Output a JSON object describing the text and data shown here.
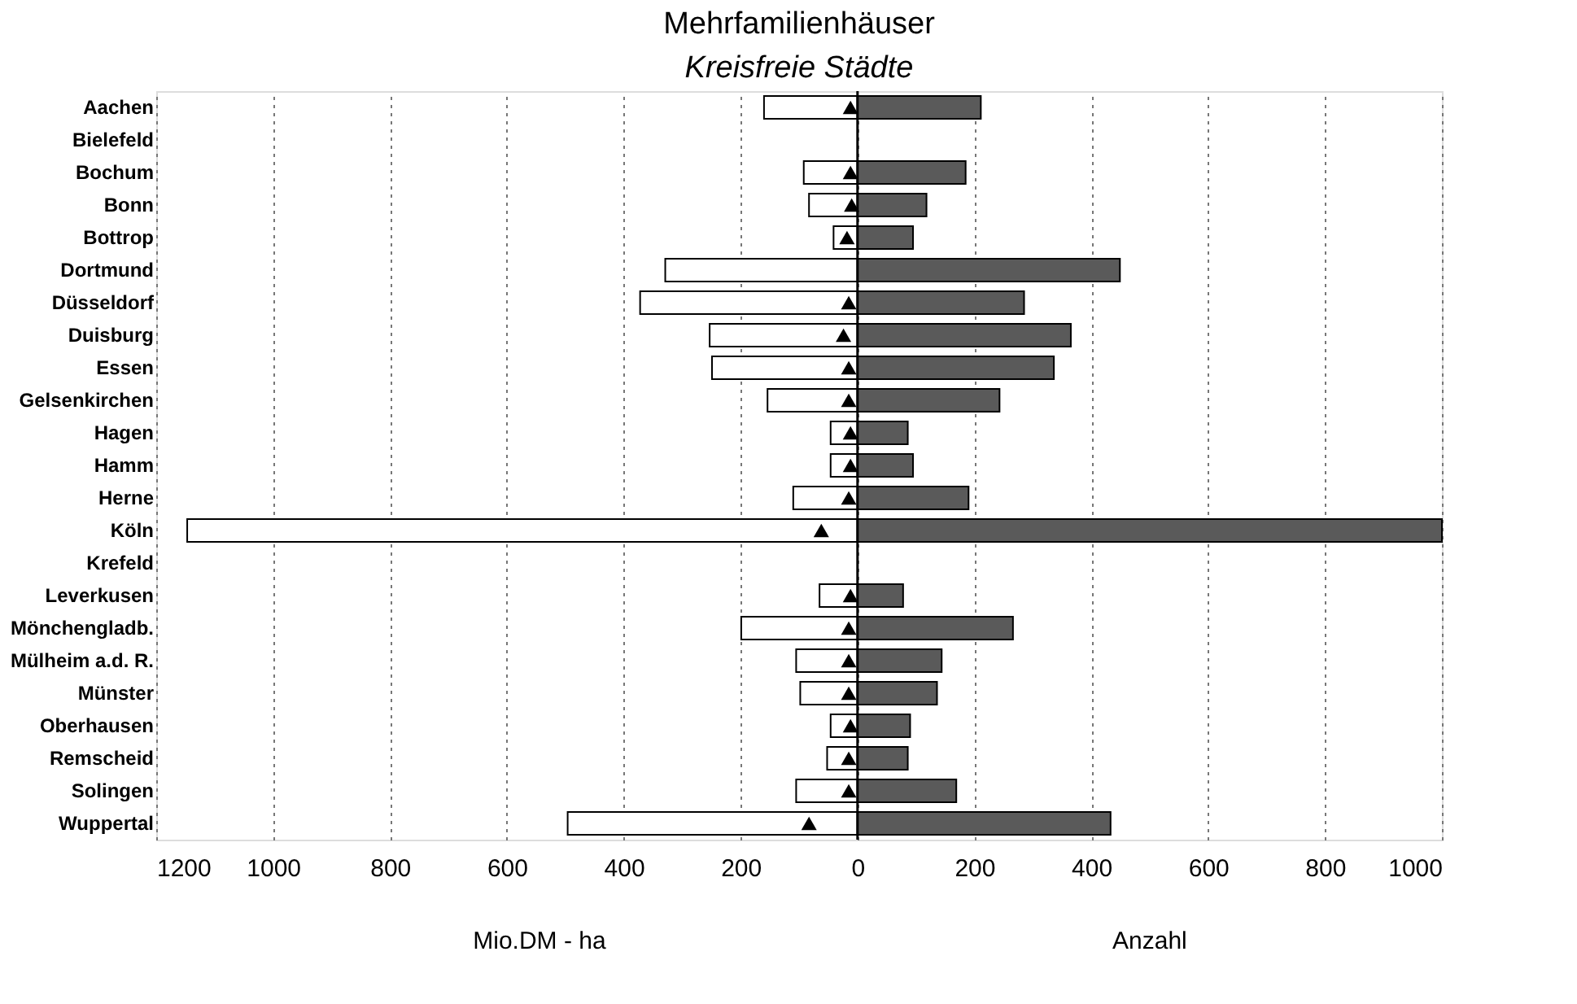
{
  "chart_data": {
    "type": "bar",
    "orientation": "horizontal",
    "title": "Mehrfamilienhäuser",
    "subtitle": "Kreisfreie Städte",
    "xlabel": "Mio.DM - ha",
    "annotations": [
      "Anzahl"
    ],
    "categories": [
      "Aachen",
      "Bielefeld",
      "Bochum",
      "Bonn",
      "Bottrop",
      "Dortmund",
      "Düsseldorf",
      "Duisburg",
      "Essen",
      "Gelsenkirchen",
      "Hagen",
      "Hamm",
      "Herne",
      "Köln",
      "Krefeld",
      "Leverkusen",
      "Mönchengladb.",
      "Mülheim a.d. R.",
      "Münster",
      "Oberhausen",
      "Remscheid",
      "Solingen",
      "Wuppertal"
    ],
    "series": [
      {
        "color": "#ffffff",
        "values": [
          -160,
          null,
          -92,
          -83,
          -41,
          -329,
          -372,
          -253,
          -249,
          -154,
          -46,
          -46,
          -110,
          -1147,
          null,
          -65,
          -199,
          -105,
          -98,
          -46,
          -52,
          -105,
          -496
        ]
      },
      {
        "color": "#5a5a5a",
        "values": [
          211,
          null,
          185,
          118,
          95,
          449,
          285,
          365,
          336,
          243,
          86,
          95,
          190,
          1000,
          null,
          78,
          266,
          144,
          136,
          90,
          86,
          169,
          433
        ]
      },
      {
        "type": "scatter",
        "marker": "triangle",
        "color": "#000000",
        "values": [
          -12,
          null,
          -12,
          -10,
          -18,
          null,
          -15,
          -24,
          -15,
          -15,
          -12,
          -12,
          -15,
          -62,
          null,
          -12,
          -15,
          -15,
          -15,
          -12,
          -15,
          -15,
          -83
        ]
      }
    ],
    "xlim": [
      -1200,
      1000
    ],
    "xticks": [
      {
        "value": -1200,
        "label": "1200"
      },
      {
        "value": -1000,
        "label": "1000"
      },
      {
        "value": -800,
        "label": "800"
      },
      {
        "value": -600,
        "label": "600"
      },
      {
        "value": -400,
        "label": "400"
      },
      {
        "value": -200,
        "label": "200"
      },
      0,
      200,
      400,
      600,
      800,
      1000
    ],
    "ref_lines": [
      {
        "axis": "x",
        "value": 0,
        "color": "#000000"
      }
    ],
    "grid": "x",
    "stacked": true
  }
}
